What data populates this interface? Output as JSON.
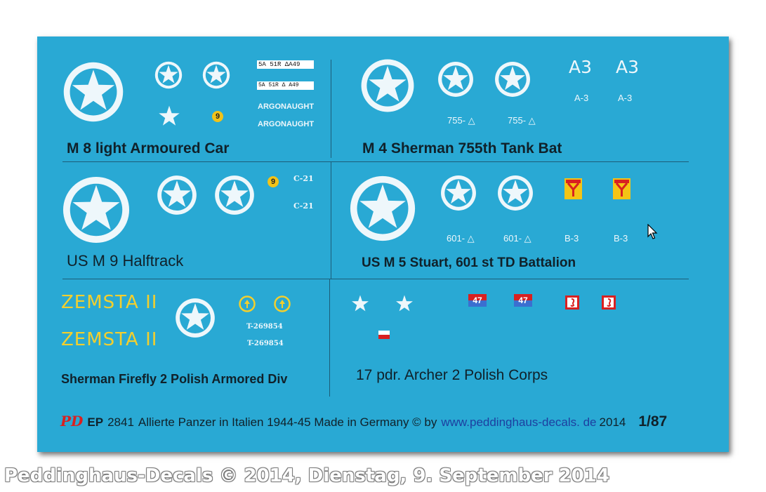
{
  "colors": {
    "background": "#29a9d4",
    "text": "#10212a",
    "decal_white": "#eef7fb",
    "yellow": "#f3cf2d",
    "red": "#d92020",
    "link": "#1d3fa0"
  },
  "sections": {
    "m8": {
      "title": "M 8 light Armoured Car",
      "tag1": "5A 51R ΔA49",
      "tag2": "5A 51R Δ A49",
      "name1": "ARGONAUGHT",
      "name2": "ARGONAUGHT",
      "circle_number": "9"
    },
    "m4": {
      "title": "M 4 Sherman 755th Tank Bat",
      "code1": "755- △",
      "code2": "755- △",
      "big1": "A3",
      "big2": "A3",
      "small1": "A-3",
      "small2": "A-3"
    },
    "m9": {
      "title": "US M 9 Halftrack",
      "circle_number": "9",
      "code1": "C-21",
      "code2": "C-21"
    },
    "m5": {
      "title": "US M 5 Stuart, 601 st TD Battalion",
      "code1": "601- △",
      "code2": "601- △",
      "code3": "B-3",
      "code4": "B-3"
    },
    "firefly": {
      "title": "Sherman Firefly 2 Polish Armored Div",
      "zemsta1": "ZEMSTA II",
      "zemsta2": "ZEMSTA II",
      "serial1": "T-269854",
      "serial2": "T-269854"
    },
    "archer": {
      "title": "17 pdr. Archer 2 Polish Corps",
      "badge1": "47",
      "badge2": "47"
    }
  },
  "footer": {
    "logo": "PD",
    "code": "EP",
    "number": "2841",
    "description": "Allierte Panzer in Italien 1944-45 Made in Germany © by",
    "url": "www.peddinghaus-decals. de",
    "year": "2014",
    "scale": "1/87"
  },
  "watermark": "Peddinghaus-Decals  © 2014, Dienstag, 9. September 2014",
  "icons": [
    "roundel-star-icon",
    "star-icon",
    "mouse-cursor-icon",
    "crest-icon"
  ]
}
